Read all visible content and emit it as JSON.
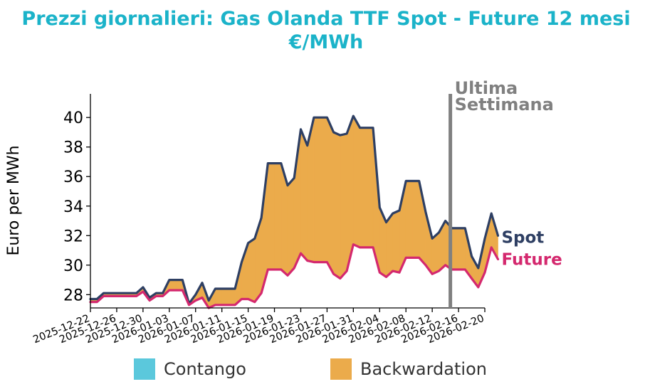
{
  "title_line1": "Prezzi giornalieri: Gas Olanda TTF Spot - Future 12 mesi",
  "title_line2": "€/MWh",
  "chart_data": {
    "type": "area",
    "title": "Prezzi giornalieri: Gas Olanda TTF Spot - Future 12 mesi €/MWh",
    "ylabel": "Euro per MWh",
    "xlabel": "",
    "ylim": [
      27.1,
      41.6
    ],
    "xlim": [
      "2025-12-22",
      "2026-02-20"
    ],
    "y_ticks": [
      28,
      30,
      32,
      34,
      36,
      38,
      40
    ],
    "x_ticks": [
      "2025-12-22",
      "2025-12-26",
      "2025-12-30",
      "2026-01-03",
      "2026-01-07",
      "2026-01-11",
      "2026-01-15",
      "2026-01-19",
      "2026-01-23",
      "2026-01-27",
      "2026-01-31",
      "2026-02-04",
      "2026-02-08",
      "2026-02-12",
      "2026-02-16",
      "2026-02-20"
    ],
    "grid": false,
    "series": [
      {
        "name": "Spot",
        "color": "#2e3f63",
        "points": [
          [
            "2025-12-22",
            27.7
          ],
          [
            "2025-12-23",
            27.7
          ],
          [
            "2025-12-24",
            28.1
          ],
          [
            "2025-12-25",
            28.1
          ],
          [
            "2025-12-26",
            28.1
          ],
          [
            "2025-12-27",
            28.1
          ],
          [
            "2025-12-28",
            28.1
          ],
          [
            "2025-12-29",
            28.1
          ],
          [
            "2025-12-30",
            28.5
          ],
          [
            "2025-12-31",
            27.8
          ],
          [
            "2026-01-01",
            28.1
          ],
          [
            "2026-01-02",
            28.1
          ],
          [
            "2026-01-03",
            29.0
          ],
          [
            "2026-01-04",
            29.0
          ],
          [
            "2026-01-05",
            29.0
          ],
          [
            "2026-01-06",
            27.4
          ],
          [
            "2026-01-07",
            28.0
          ],
          [
            "2026-01-08",
            28.8
          ],
          [
            "2026-01-09",
            27.6
          ],
          [
            "2026-01-10",
            28.4
          ],
          [
            "2026-01-11",
            28.4
          ],
          [
            "2026-01-12",
            28.4
          ],
          [
            "2026-01-13",
            28.4
          ],
          [
            "2026-01-14",
            30.2
          ],
          [
            "2026-01-15",
            31.5
          ],
          [
            "2026-01-16",
            31.8
          ],
          [
            "2026-01-17",
            33.2
          ],
          [
            "2026-01-18",
            36.9
          ],
          [
            "2026-01-19",
            36.9
          ],
          [
            "2026-01-20",
            36.9
          ],
          [
            "2026-01-21",
            35.4
          ],
          [
            "2026-01-22",
            35.9
          ],
          [
            "2026-01-23",
            39.2
          ],
          [
            "2026-01-24",
            38.1
          ],
          [
            "2026-01-25",
            40.0
          ],
          [
            "2026-01-26",
            40.0
          ],
          [
            "2026-01-27",
            40.0
          ],
          [
            "2026-01-28",
            39.0
          ],
          [
            "2026-01-29",
            38.8
          ],
          [
            "2026-01-30",
            38.9
          ],
          [
            "2026-01-31",
            40.1
          ],
          [
            "2026-02-01",
            39.3
          ],
          [
            "2026-02-02",
            39.3
          ],
          [
            "2026-02-03",
            39.3
          ],
          [
            "2026-02-04",
            33.9
          ],
          [
            "2026-02-05",
            32.9
          ],
          [
            "2026-02-06",
            33.5
          ],
          [
            "2026-02-07",
            33.7
          ],
          [
            "2026-02-08",
            35.7
          ],
          [
            "2026-02-09",
            35.7
          ],
          [
            "2026-02-10",
            35.7
          ],
          [
            "2026-02-11",
            33.6
          ],
          [
            "2026-02-12",
            31.8
          ],
          [
            "2026-02-13",
            32.2
          ],
          [
            "2026-02-14",
            33.0
          ],
          [
            "2026-02-15",
            32.5
          ],
          [
            "2026-02-16",
            32.5
          ],
          [
            "2026-02-17",
            32.5
          ],
          [
            "2026-02-18",
            30.6
          ],
          [
            "2026-02-19",
            29.8
          ],
          [
            "2026-02-20",
            31.8
          ],
          [
            "2026-02-21",
            33.5
          ],
          [
            "2026-02-22",
            32.0
          ]
        ]
      },
      {
        "name": "Future",
        "color": "#d4286e",
        "points": [
          [
            "2025-12-22",
            27.5
          ],
          [
            "2025-12-23",
            27.5
          ],
          [
            "2025-12-24",
            27.9
          ],
          [
            "2025-12-25",
            27.9
          ],
          [
            "2025-12-26",
            27.9
          ],
          [
            "2025-12-27",
            27.9
          ],
          [
            "2025-12-28",
            27.9
          ],
          [
            "2025-12-29",
            27.9
          ],
          [
            "2025-12-30",
            28.2
          ],
          [
            "2025-12-31",
            27.6
          ],
          [
            "2026-01-01",
            27.9
          ],
          [
            "2026-01-02",
            27.9
          ],
          [
            "2026-01-03",
            28.3
          ],
          [
            "2026-01-04",
            28.3
          ],
          [
            "2026-01-05",
            28.3
          ],
          [
            "2026-01-06",
            27.3
          ],
          [
            "2026-01-07",
            27.6
          ],
          [
            "2026-01-08",
            27.8
          ],
          [
            "2026-01-09",
            27.1
          ],
          [
            "2026-01-10",
            27.3
          ],
          [
            "2026-01-11",
            27.3
          ],
          [
            "2026-01-12",
            27.3
          ],
          [
            "2026-01-13",
            27.3
          ],
          [
            "2026-01-14",
            27.7
          ],
          [
            "2026-01-15",
            27.7
          ],
          [
            "2026-01-16",
            27.5
          ],
          [
            "2026-01-17",
            28.1
          ],
          [
            "2026-01-18",
            29.7
          ],
          [
            "2026-01-19",
            29.7
          ],
          [
            "2026-01-20",
            29.7
          ],
          [
            "2026-01-21",
            29.3
          ],
          [
            "2026-01-22",
            29.8
          ],
          [
            "2026-01-23",
            30.8
          ],
          [
            "2026-01-24",
            30.3
          ],
          [
            "2026-01-25",
            30.2
          ],
          [
            "2026-01-26",
            30.2
          ],
          [
            "2026-01-27",
            30.2
          ],
          [
            "2026-01-28",
            29.4
          ],
          [
            "2026-01-29",
            29.1
          ],
          [
            "2026-01-30",
            29.6
          ],
          [
            "2026-01-31",
            31.4
          ],
          [
            "2026-02-01",
            31.2
          ],
          [
            "2026-02-02",
            31.2
          ],
          [
            "2026-02-03",
            31.2
          ],
          [
            "2026-02-04",
            29.5
          ],
          [
            "2026-02-05",
            29.2
          ],
          [
            "2026-02-06",
            29.6
          ],
          [
            "2026-02-07",
            29.5
          ],
          [
            "2026-02-08",
            30.5
          ],
          [
            "2026-02-09",
            30.5
          ],
          [
            "2026-02-10",
            30.5
          ],
          [
            "2026-02-11",
            30.0
          ],
          [
            "2026-02-12",
            29.4
          ],
          [
            "2026-02-13",
            29.6
          ],
          [
            "2026-02-14",
            30.0
          ],
          [
            "2026-02-15",
            29.7
          ],
          [
            "2026-02-16",
            29.7
          ],
          [
            "2026-02-17",
            29.7
          ],
          [
            "2026-02-18",
            29.1
          ],
          [
            "2026-02-19",
            28.5
          ],
          [
            "2026-02-20",
            29.5
          ],
          [
            "2026-02-21",
            31.2
          ],
          [
            "2026-02-22",
            30.4
          ]
        ]
      }
    ],
    "fill_between": {
      "contango_label": "Contango",
      "contango_color": "#5bc8dc",
      "backwardation_label": "Backwardation",
      "backwardation_color": "#ebab4b"
    },
    "annotation": {
      "line1": "Ultima",
      "line2": "Settimana",
      "date": "2026-02-14",
      "color": "#808080"
    },
    "series_end_labels": [
      "Spot",
      "Future"
    ],
    "legend": "bottom-center"
  }
}
